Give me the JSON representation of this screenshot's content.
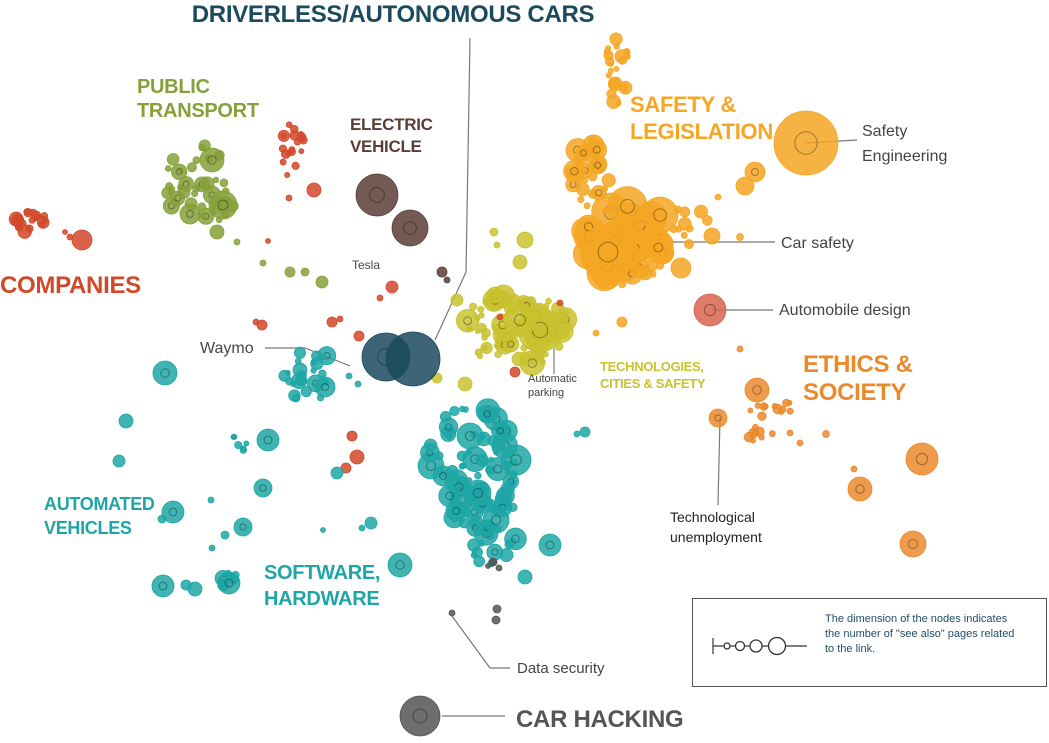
{
  "colors": {
    "driverless": "#1b4a5e",
    "public_transport": "#86a03a",
    "electric_vehicle": "#5a3d37",
    "companies": "#d2482a",
    "safety": "#f5a623",
    "technologies": "#c9c22f",
    "ethics": "#eb8a2b",
    "automated": "#1ea6a6",
    "car_hacking": "#555555",
    "leader": "#777777"
  },
  "cluster_labels": {
    "driverless": "DRIVERLESS/AUTONOMOUS CARS",
    "public_transport_1": "PUBLIC",
    "public_transport_2": "TRANSPORT",
    "electric_vehicle_1": "ELECTRIC",
    "electric_vehicle_2": "VEHICLE",
    "companies": "COMPANIES",
    "safety_1": "SAFETY &",
    "safety_2": "LEGISLATION",
    "ethics_1": "ETHICS &",
    "ethics_2": "SOCIETY",
    "technologies_1": "TECHNOLOGIES,",
    "technologies_2": "CITIES & SAFETY",
    "automated_1": "AUTOMATED",
    "automated_2": "VEHICLES",
    "software_1": "SOFTWARE,",
    "software_2": "HARDWARE",
    "car_hacking": "CAR HACKING"
  },
  "node_labels": {
    "tesla": "Tesla",
    "waymo": "Waymo",
    "automatic_parking_1": "Automatic",
    "automatic_parking_2": "parking",
    "safety_engineering_1": "Safety",
    "safety_engineering_2": "Engineering",
    "car_safety": "Car safety",
    "automobile_design": "Automobile design",
    "technological_unemployment_1": "Technological",
    "technological_unemployment_2": "unemployment",
    "data_security": "Data security"
  },
  "legend": {
    "line1": "The dimension of the nodes indicates",
    "line2": "the number of \"see also\" pages related",
    "line3": "to the link."
  }
}
